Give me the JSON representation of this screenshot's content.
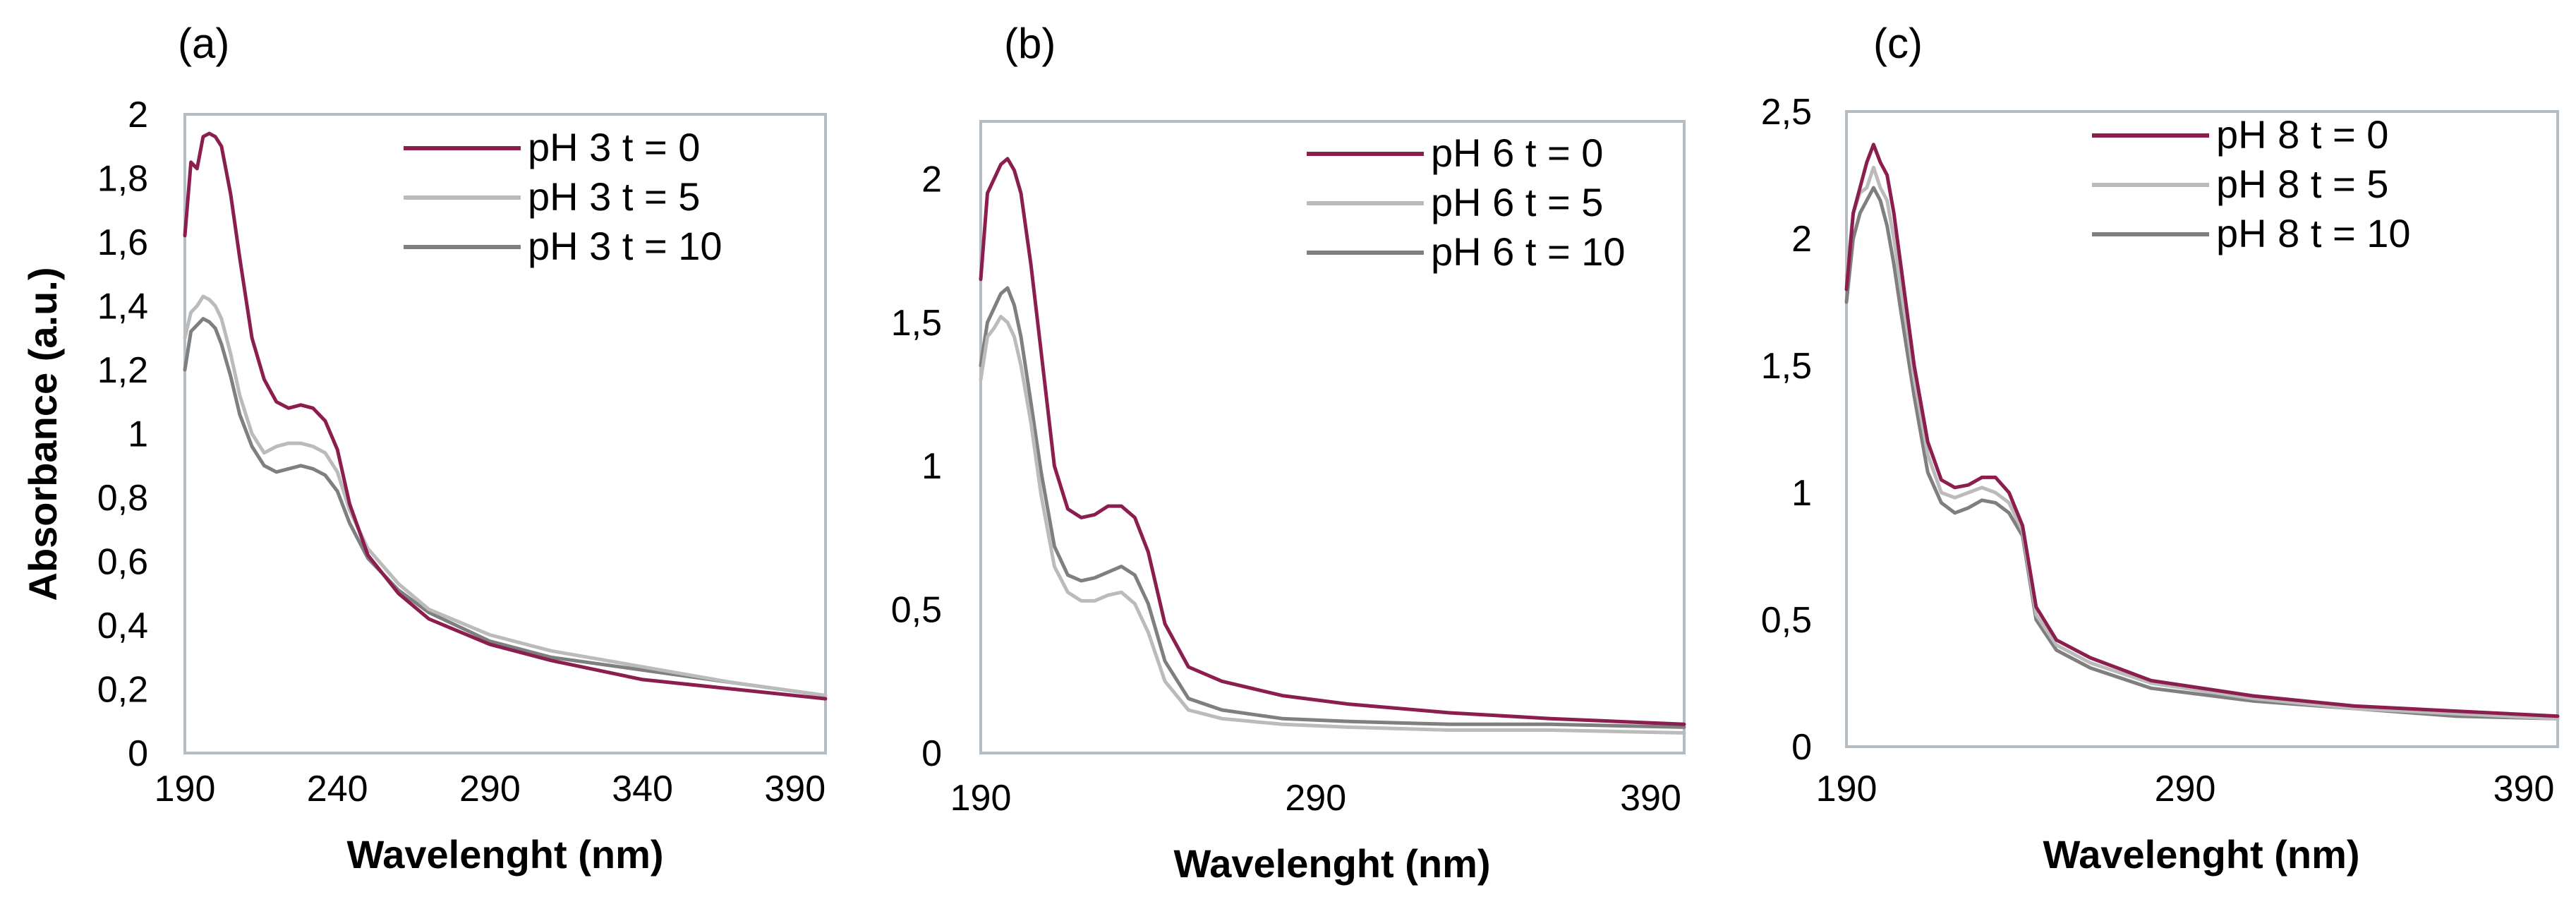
{
  "chart_data": [
    {
      "type": "line",
      "panel_label": "(a)",
      "xlabel": "Wavelenght (nm)",
      "ylabel": "Absorbance (a.u.)",
      "xlim": [
        190,
        400
      ],
      "ylim": [
        0,
        2
      ],
      "xticks": [
        190,
        240,
        290,
        340,
        390
      ],
      "yticks": [
        0,
        0.2,
        0.4,
        0.6,
        0.8,
        1,
        1.2,
        1.4,
        1.6,
        1.8,
        2
      ],
      "ytick_labels": [
        "0",
        "0,2",
        "0,4",
        "0,6",
        "0,8",
        "1",
        "1,2",
        "1,4",
        "1,6",
        "1,8",
        "2"
      ],
      "legend_position": "top-right",
      "series": [
        {
          "name": "pH 3 t = 0",
          "color": "#8b1e4f",
          "x": [
            190,
            192,
            194,
            196,
            198,
            200,
            202,
            205,
            208,
            212,
            216,
            220,
            224,
            228,
            232,
            236,
            240,
            244,
            250,
            260,
            270,
            290,
            310,
            340,
            370,
            400
          ],
          "y": [
            1.62,
            1.85,
            1.83,
            1.93,
            1.94,
            1.93,
            1.9,
            1.75,
            1.55,
            1.3,
            1.17,
            1.1,
            1.08,
            1.09,
            1.08,
            1.04,
            0.95,
            0.78,
            0.62,
            0.5,
            0.42,
            0.34,
            0.29,
            0.23,
            0.2,
            0.17
          ]
        },
        {
          "name": "pH 3 t = 5",
          "color": "#bbbbbb",
          "x": [
            190,
            192,
            194,
            196,
            198,
            200,
            202,
            205,
            208,
            212,
            216,
            220,
            224,
            228,
            232,
            236,
            240,
            244,
            250,
            260,
            270,
            290,
            310,
            340,
            370,
            400
          ],
          "y": [
            1.3,
            1.38,
            1.4,
            1.43,
            1.42,
            1.4,
            1.36,
            1.25,
            1.12,
            1.0,
            0.94,
            0.96,
            0.97,
            0.97,
            0.96,
            0.94,
            0.88,
            0.76,
            0.64,
            0.53,
            0.45,
            0.37,
            0.32,
            0.27,
            0.22,
            0.18
          ]
        },
        {
          "name": "pH 3 t = 10",
          "color": "#7f7f7f",
          "x": [
            190,
            192,
            194,
            196,
            198,
            200,
            202,
            205,
            208,
            212,
            216,
            220,
            224,
            228,
            232,
            236,
            240,
            244,
            250,
            260,
            270,
            290,
            310,
            340,
            370,
            400
          ],
          "y": [
            1.2,
            1.32,
            1.34,
            1.36,
            1.35,
            1.33,
            1.28,
            1.18,
            1.06,
            0.96,
            0.9,
            0.88,
            0.89,
            0.9,
            0.89,
            0.87,
            0.82,
            0.72,
            0.61,
            0.51,
            0.44,
            0.35,
            0.3,
            0.26,
            0.22,
            0.18
          ]
        }
      ]
    },
    {
      "type": "line",
      "panel_label": "(b)",
      "xlabel": "Wavelenght (nm)",
      "ylabel": "",
      "xlim": [
        190,
        400
      ],
      "ylim": [
        0,
        2.2
      ],
      "xticks": [
        190,
        290,
        390
      ],
      "yticks": [
        0,
        0.5,
        1,
        1.5,
        2
      ],
      "ytick_labels": [
        "0",
        "0,5",
        "1",
        "1,5",
        "2"
      ],
      "legend_position": "top-right",
      "series": [
        {
          "name": "pH 6 t = 0",
          "color": "#8b1e4f",
          "x": [
            190,
            192,
            194,
            196,
            198,
            200,
            202,
            205,
            208,
            212,
            216,
            220,
            224,
            228,
            232,
            236,
            240,
            245,
            252,
            262,
            280,
            300,
            330,
            360,
            400
          ],
          "y": [
            1.65,
            1.95,
            2.0,
            2.05,
            2.07,
            2.03,
            1.95,
            1.7,
            1.4,
            1.0,
            0.85,
            0.82,
            0.83,
            0.86,
            0.86,
            0.82,
            0.7,
            0.45,
            0.3,
            0.25,
            0.2,
            0.17,
            0.14,
            0.12,
            0.1
          ]
        },
        {
          "name": "pH 6 t = 5",
          "color": "#bbbbbb",
          "x": [
            190,
            192,
            194,
            196,
            198,
            200,
            202,
            205,
            208,
            212,
            216,
            220,
            224,
            228,
            232,
            236,
            240,
            245,
            252,
            262,
            280,
            300,
            330,
            360,
            400
          ],
          "y": [
            1.3,
            1.45,
            1.48,
            1.52,
            1.5,
            1.45,
            1.35,
            1.15,
            0.9,
            0.65,
            0.56,
            0.53,
            0.53,
            0.55,
            0.56,
            0.52,
            0.42,
            0.25,
            0.15,
            0.12,
            0.1,
            0.09,
            0.08,
            0.08,
            0.07
          ]
        },
        {
          "name": "pH 6 t = 10",
          "color": "#7f7f7f",
          "x": [
            190,
            192,
            194,
            196,
            198,
            200,
            202,
            205,
            208,
            212,
            216,
            220,
            224,
            228,
            232,
            236,
            240,
            245,
            252,
            262,
            280,
            300,
            330,
            360,
            400
          ],
          "y": [
            1.35,
            1.5,
            1.55,
            1.6,
            1.62,
            1.56,
            1.45,
            1.22,
            0.98,
            0.72,
            0.62,
            0.6,
            0.61,
            0.63,
            0.65,
            0.62,
            0.52,
            0.32,
            0.19,
            0.15,
            0.12,
            0.11,
            0.1,
            0.1,
            0.09
          ]
        }
      ]
    },
    {
      "type": "line",
      "panel_label": "(c)",
      "xlabel": "Wavelenght (nm)",
      "ylabel": "",
      "xlim": [
        190,
        400
      ],
      "ylim": [
        0,
        2.5
      ],
      "xticks": [
        190,
        290,
        390
      ],
      "yticks": [
        0,
        0.5,
        1,
        1.5,
        2,
        2.5
      ],
      "ytick_labels": [
        "0",
        "0,5",
        "1",
        "1,5",
        "2",
        "2,5"
      ],
      "legend_position": "top-right",
      "series": [
        {
          "name": "pH 8 t = 0",
          "color": "#8b1e4f",
          "x": [
            190,
            192,
            194,
            196,
            198,
            200,
            202,
            204,
            206,
            210,
            214,
            218,
            222,
            226,
            230,
            234,
            238,
            242,
            246,
            252,
            262,
            280,
            310,
            340,
            370,
            400
          ],
          "y": [
            1.8,
            2.1,
            2.2,
            2.3,
            2.37,
            2.3,
            2.25,
            2.1,
            1.9,
            1.5,
            1.2,
            1.05,
            1.02,
            1.03,
            1.06,
            1.06,
            1.0,
            0.87,
            0.55,
            0.42,
            0.35,
            0.26,
            0.2,
            0.16,
            0.14,
            0.12
          ]
        },
        {
          "name": "pH 8 t = 5",
          "color": "#bbbbbb",
          "x": [
            190,
            192,
            194,
            196,
            198,
            200,
            202,
            204,
            206,
            210,
            214,
            218,
            222,
            226,
            230,
            234,
            238,
            242,
            246,
            252,
            262,
            280,
            310,
            340,
            370,
            400
          ],
          "y": [
            1.85,
            2.1,
            2.18,
            2.2,
            2.28,
            2.2,
            2.15,
            2.0,
            1.82,
            1.45,
            1.15,
            1.0,
            0.98,
            1.0,
            1.02,
            1.0,
            0.96,
            0.85,
            0.52,
            0.4,
            0.33,
            0.25,
            0.19,
            0.15,
            0.13,
            0.11
          ]
        },
        {
          "name": "pH 8 t = 10",
          "color": "#7f7f7f",
          "x": [
            190,
            192,
            194,
            196,
            198,
            200,
            202,
            204,
            206,
            210,
            214,
            218,
            222,
            226,
            230,
            234,
            238,
            242,
            246,
            252,
            262,
            280,
            310,
            340,
            370,
            400
          ],
          "y": [
            1.75,
            2.0,
            2.1,
            2.15,
            2.2,
            2.15,
            2.05,
            1.9,
            1.72,
            1.38,
            1.08,
            0.96,
            0.92,
            0.94,
            0.97,
            0.96,
            0.92,
            0.83,
            0.5,
            0.38,
            0.31,
            0.23,
            0.18,
            0.15,
            0.12,
            0.11
          ]
        }
      ]
    }
  ]
}
